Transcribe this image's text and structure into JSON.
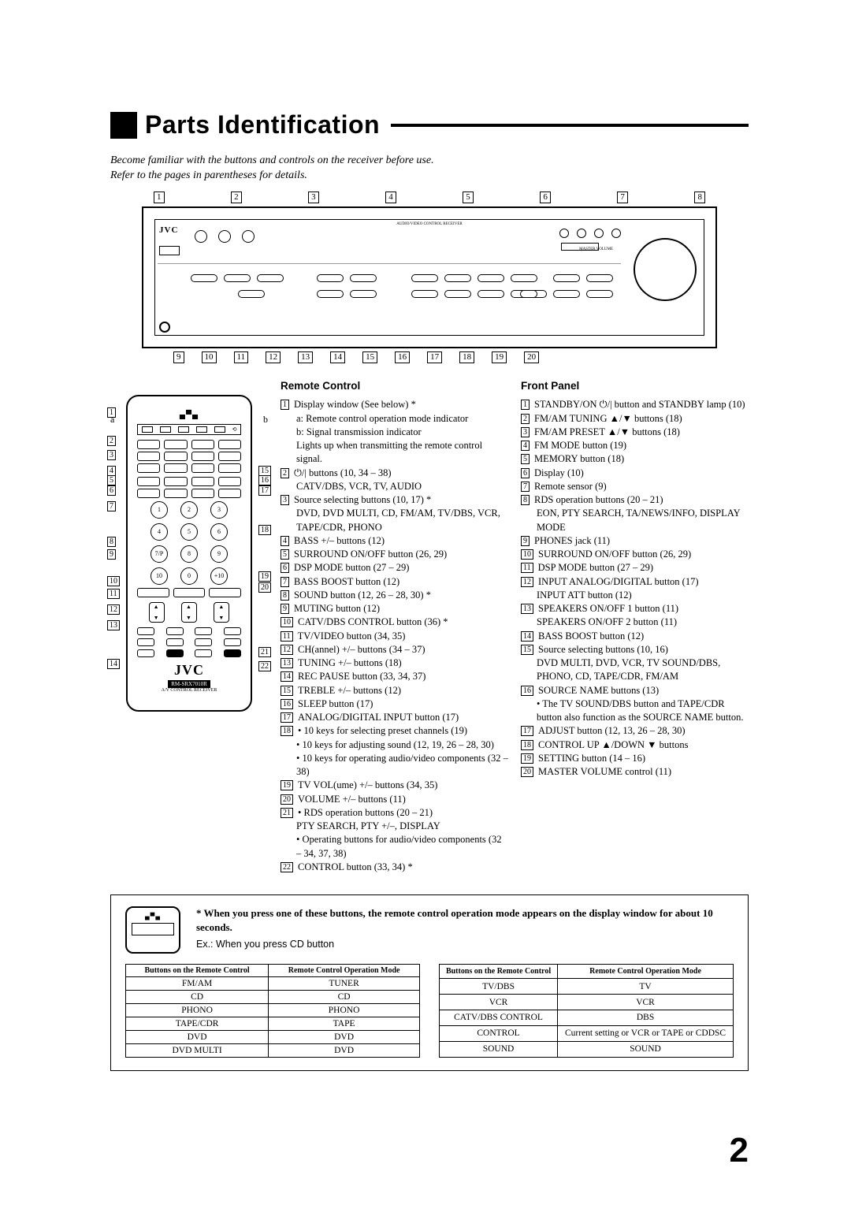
{
  "heading": "Parts Identification",
  "intro_line1": "Become familiar with the buttons and controls on the receiver before use.",
  "intro_line2": "Refer to the pages in parentheses for details.",
  "top_callouts": [
    "1",
    "2",
    "3",
    "4",
    "5",
    "6",
    "7",
    "8"
  ],
  "bottom_callouts": [
    "9",
    "10",
    "11",
    "12",
    "13",
    "14",
    "15",
    "16",
    "17",
    "18",
    "19",
    "20"
  ],
  "panel_brand": "JVC",
  "panel_top_label": "AUDIO/VIDEO CONTROL RECEIVER",
  "panel_master_vol": "MASTER VOLUME",
  "remote_section_title": "Remote Control",
  "front_section_title": "Front Panel",
  "ab_a": "a",
  "ab_b": "b",
  "remote_left_callouts": [
    "1",
    "2",
    "3",
    "4",
    "5",
    "6",
    "7",
    "8",
    "9",
    "10",
    "11",
    "12",
    "13",
    "14"
  ],
  "remote_right_callouts": [
    "15",
    "16",
    "17",
    "18",
    "19",
    "20",
    "21",
    "22"
  ],
  "remote_model": "RM-SRX7010R",
  "remote_sub": "A/V CONTROL RECEIVER",
  "remote_brand_big": "JVC",
  "remote_numbers": [
    "1",
    "2",
    "3",
    "4",
    "5",
    "6",
    "7/P",
    "8",
    "9",
    "10",
    "0",
    "+10"
  ],
  "remote_list": [
    {
      "n": "1",
      "t": "Display window (See below) *",
      "subs": [
        "a: Remote control operation mode indicator",
        "b: Signal transmission indicator",
        "Lights up when transmitting the remote control signal."
      ]
    },
    {
      "n": "2",
      "t": "⏻/| buttons (10, 34 – 38)",
      "subs": [
        "CATV/DBS, VCR, TV, AUDIO"
      ]
    },
    {
      "n": "3",
      "t": "Source selecting buttons (10, 17) *",
      "subs": [
        "DVD, DVD MULTI, CD, FM/AM, TV/DBS, VCR, TAPE/CDR, PHONO"
      ]
    },
    {
      "n": "4",
      "t": "BASS +/– buttons (12)"
    },
    {
      "n": "5",
      "t": "SURROUND ON/OFF button (26, 29)"
    },
    {
      "n": "6",
      "t": "DSP MODE button (27 – 29)"
    },
    {
      "n": "7",
      "t": "BASS BOOST button (12)"
    },
    {
      "n": "8",
      "t": "SOUND button (12, 26 – 28, 30) *"
    },
    {
      "n": "9",
      "t": "MUTING button (12)"
    },
    {
      "n": "10",
      "t": "CATV/DBS CONTROL button (36) *"
    },
    {
      "n": "11",
      "t": "TV/VIDEO button (34, 35)"
    },
    {
      "n": "12",
      "t": "CH(annel) +/– buttons (34 – 37)"
    },
    {
      "n": "13",
      "t": "TUNING +/– buttons (18)"
    },
    {
      "n": "14",
      "t": "REC PAUSE button (33, 34, 37)"
    },
    {
      "n": "15",
      "t": "TREBLE +/– buttons (12)"
    },
    {
      "n": "16",
      "t": "SLEEP button (17)"
    },
    {
      "n": "17",
      "t": "ANALOG/DIGITAL INPUT button (17)"
    },
    {
      "n": "18",
      "t": "• 10 keys for selecting preset channels (19)",
      "subs": [
        "• 10 keys for adjusting sound (12, 19, 26 – 28, 30)",
        "• 10 keys for operating audio/video components (32 – 38)"
      ]
    },
    {
      "n": "19",
      "t": "TV VOL(ume) +/– buttons (34, 35)"
    },
    {
      "n": "20",
      "t": "VOLUME +/– buttons (11)"
    },
    {
      "n": "21",
      "t": "• RDS operation buttons (20 – 21)",
      "subs": [
        "PTY SEARCH, PTY +/–, DISPLAY",
        "• Operating buttons for audio/video components (32 – 34, 37, 38)"
      ]
    },
    {
      "n": "22",
      "t": "CONTROL button (33, 34) *"
    }
  ],
  "front_list": [
    {
      "n": "1",
      "t": "STANDBY/ON ⏻/| button and STANDBY lamp (10)"
    },
    {
      "n": "2",
      "t": "FM/AM TUNING ▲/▼ buttons (18)"
    },
    {
      "n": "3",
      "t": "FM/AM PRESET ▲/▼ buttons (18)"
    },
    {
      "n": "4",
      "t": "FM MODE button (19)"
    },
    {
      "n": "5",
      "t": "MEMORY button (18)"
    },
    {
      "n": "6",
      "t": "Display (10)"
    },
    {
      "n": "7",
      "t": "Remote sensor (9)"
    },
    {
      "n": "8",
      "t": "RDS operation buttons (20 – 21)",
      "subs": [
        "EON, PTY SEARCH, TA/NEWS/INFO, DISPLAY MODE"
      ]
    },
    {
      "n": "9",
      "t": "PHONES jack (11)"
    },
    {
      "n": "10",
      "t": "SURROUND ON/OFF button (26, 29)"
    },
    {
      "n": "11",
      "t": "DSP MODE button (27 – 29)"
    },
    {
      "n": "12",
      "t": "INPUT ANALOG/DIGITAL button (17)",
      "subs": [
        "INPUT ATT button (12)"
      ]
    },
    {
      "n": "13",
      "t": "SPEAKERS ON/OFF 1 button (11)",
      "subs": [
        "SPEAKERS ON/OFF 2 button (11)"
      ]
    },
    {
      "n": "14",
      "t": "BASS BOOST button (12)"
    },
    {
      "n": "15",
      "t": "Source selecting buttons (10, 16)",
      "subs": [
        "DVD MULTI, DVD, VCR, TV SOUND/DBS, PHONO, CD, TAPE/CDR, FM/AM"
      ]
    },
    {
      "n": "16",
      "t": "SOURCE NAME buttons (13)",
      "subs": [
        "• The TV SOUND/DBS button and TAPE/CDR button also function as the SOURCE NAME button."
      ]
    },
    {
      "n": "17",
      "t": "ADJUST button (12, 13, 26 – 28, 30)"
    },
    {
      "n": "18",
      "t": "CONTROL UP ▲/DOWN ▼ buttons"
    },
    {
      "n": "19",
      "t": "SETTING button (14 – 16)"
    },
    {
      "n": "20",
      "t": "MASTER VOLUME control (11)"
    }
  ],
  "note_star": "* When you press one of these buttons, the remote control operation mode appears on the display window for about 10 seconds.",
  "note_ex": "Ex.: When you press CD button",
  "table_headers": [
    "Buttons on the Remote Control",
    "Remote Control Operation Mode"
  ],
  "table1": [
    [
      "FM/AM",
      "TUNER"
    ],
    [
      "CD",
      "CD"
    ],
    [
      "PHONO",
      "PHONO"
    ],
    [
      "TAPE/CDR",
      "TAPE"
    ],
    [
      "DVD",
      "DVD"
    ],
    [
      "DVD MULTI",
      "DVD"
    ]
  ],
  "table2": [
    [
      "TV/DBS",
      "TV"
    ],
    [
      "VCR",
      "VCR"
    ],
    [
      "CATV/DBS CONTROL",
      "DBS"
    ],
    [
      "CONTROL",
      "Current setting or VCR or TAPE or CDDSC"
    ],
    [
      "SOUND",
      "SOUND"
    ]
  ],
  "page_number": "2"
}
